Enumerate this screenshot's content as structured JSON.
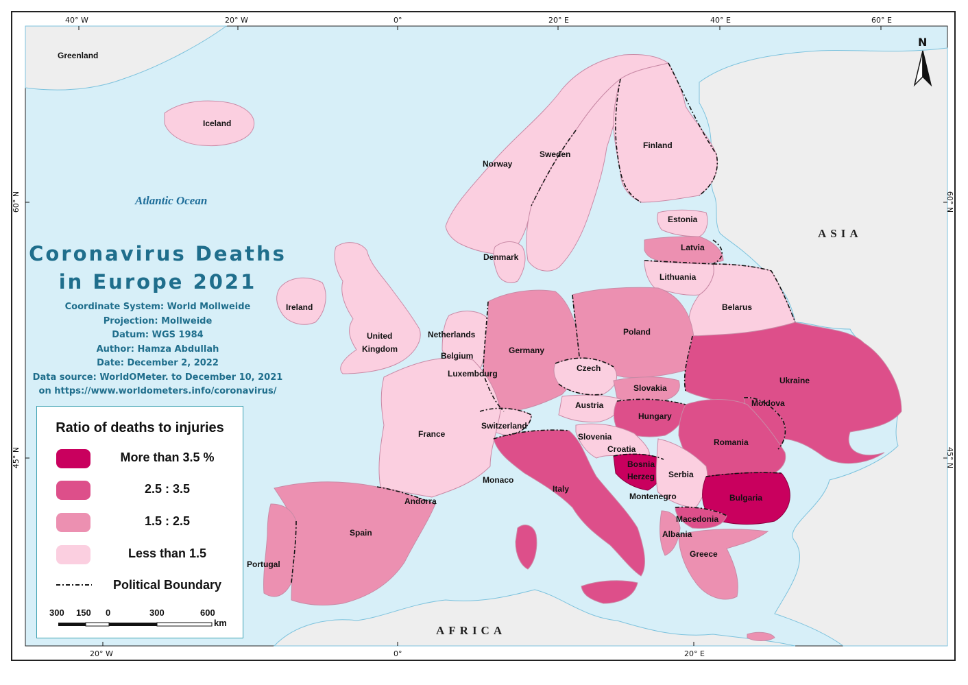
{
  "title": [
    "Coronavirus Deaths",
    "in Europe 2021"
  ],
  "meta": {
    "coordinate_system": "Coordinate System: World Mollweide",
    "projection": "Projection: Mollweide",
    "datum": "Datum: WGS 1984",
    "author": "Author: Hamza Abdullah",
    "date": "Date: December 2, 2022",
    "source_1": "Data source: WorldOMeter. to December 10, 2021",
    "source_2": "on https://www.worldometers.info/coronavirus/"
  },
  "legend": {
    "title": "Ratio of deaths to injuries",
    "classes": [
      {
        "label": "More than 3.5  %",
        "color": "#c9005e"
      },
      {
        "label": "2.5 : 3.5",
        "color": "#dd4f8a"
      },
      {
        "label": "1.5 : 2.5",
        "color": "#ec90b1"
      },
      {
        "label": "Less than 1.5",
        "color": "#fbcfe0"
      }
    ],
    "boundary_label": "Political Boundary"
  },
  "scale_bar": {
    "ticks": [
      "300",
      "150",
      "0",
      "300",
      "600"
    ],
    "unit": "km"
  },
  "north_label": "N",
  "graticule": {
    "top": [
      "40° W",
      "20° W",
      "0°",
      "20° E",
      "40° E",
      "60° E"
    ],
    "bottom": [
      "20° W",
      "0°",
      "20° E"
    ],
    "left": [
      "60° N",
      "45° N"
    ],
    "right": [
      "60° N",
      "45° N"
    ]
  },
  "labels": {
    "ocean": "Atlantic Ocean",
    "asia": "ASIA",
    "africa": "AFRICA",
    "greenland": "Greenland",
    "iceland": "Iceland",
    "norway": "Norway",
    "sweden": "Sweden",
    "finland": "Finland",
    "estonia": "Estonia",
    "latvia": "Latvia",
    "lithuania": "Lithuania",
    "denmark": "Denmark",
    "ireland": "Ireland",
    "united_kingdom_1": "United",
    "united_kingdom_2": "Kingdom",
    "netherlands": "Netherlands",
    "belgium": "Belgium",
    "luxembourg": "Luxembourg",
    "germany": "Germany",
    "poland": "Poland",
    "belarus": "Belarus",
    "ukraine": "Ukraine",
    "czech": "Czech",
    "slovakia": "Slovakia",
    "austria": "Austria",
    "hungary": "Hungary",
    "moldova": "Moldova",
    "romania": "Romania",
    "switzerland": "Switzerland",
    "france": "France",
    "slovenia": "Slovenia",
    "croatia": "Croatia",
    "bosnia": "Bosnia",
    "herzeg": "Herzeg",
    "serbia": "Serbia",
    "montenegro": "Montenegro",
    "bulgaria": "Bulgaria",
    "macedonia": "Macedonia",
    "albania": "Albania",
    "greece": "Greece",
    "italy": "Italy",
    "monaco": "Monaco",
    "andorra": "Andorra",
    "spain": "Spain",
    "portugal": "Portugal"
  },
  "colors": {
    "sea": "#d7eff8",
    "non_european_land": "#eeeeee",
    "class_1": "#c9005e",
    "class_2": "#dd4f8a",
    "class_3": "#ec90b1",
    "class_4": "#fbcfe0"
  }
}
